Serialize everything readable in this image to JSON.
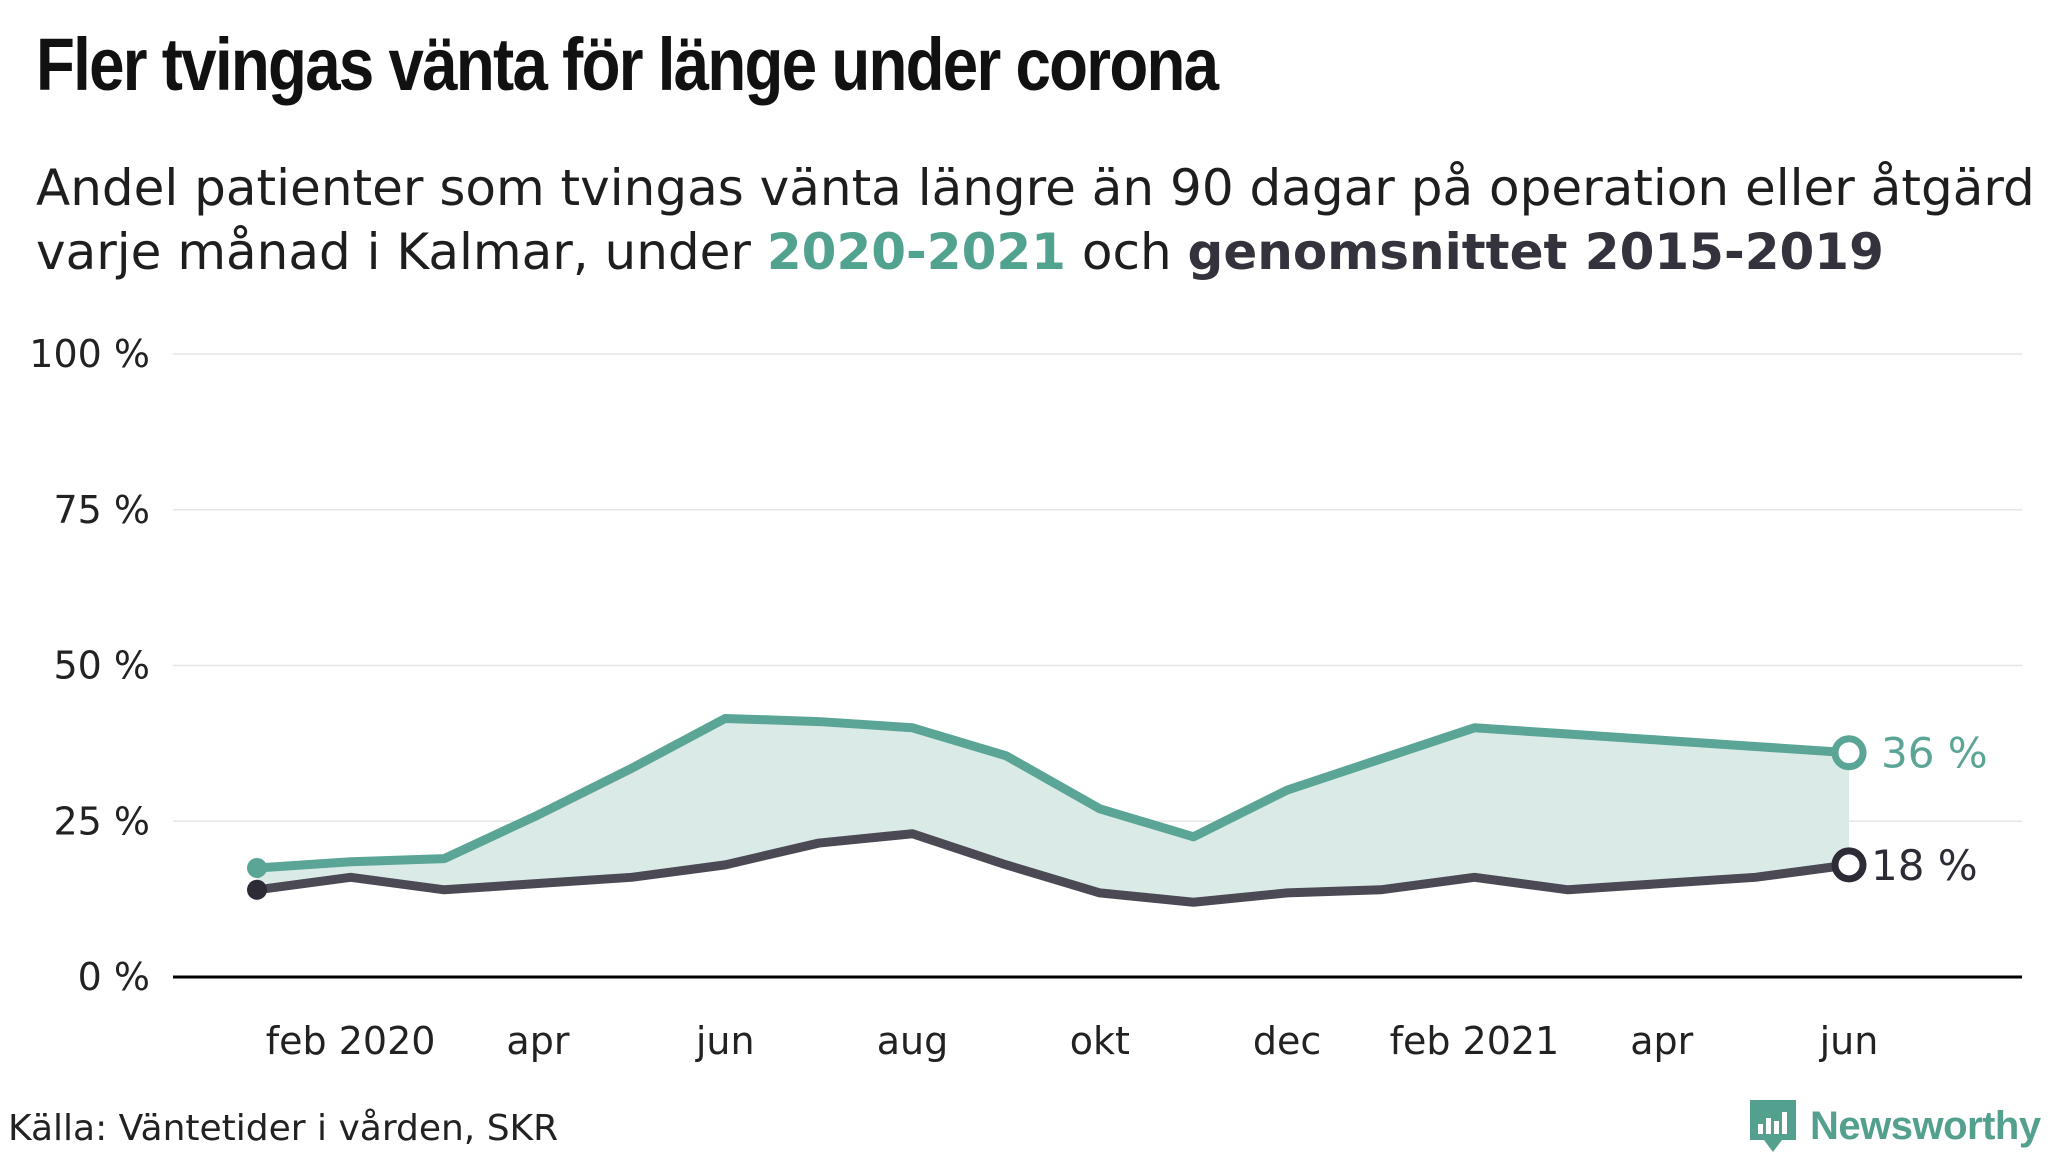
{
  "title": "Fler tvingas vänta för länge under corona",
  "subtitle": {
    "line1": "Andel patienter som tvingas vänta längre än 90 dagar på operation eller åtgärd",
    "line2_prefix": "varje månad i Kalmar, under ",
    "series1_label": "2020-2021",
    "connector": " och ",
    "series2_label": "genomsnittet 2015-2019"
  },
  "source": "Källa: Väntetider i vården, SKR",
  "brand": "Newsworthy",
  "colors": {
    "series1": "#5ba596",
    "series1_fill": "#d8e9e5",
    "series2": "#4a4954",
    "series2_marker": "#2c2b36",
    "grid": "#e6e6e6",
    "axis": "#000000",
    "brand": "#54a08f"
  },
  "chart_data": {
    "type": "line",
    "x": [
      "2020-01",
      "2020-02",
      "2020-03",
      "2020-04",
      "2020-05",
      "2020-06",
      "2020-07",
      "2020-08",
      "2020-09",
      "2020-10",
      "2020-11",
      "2020-12",
      "2021-01",
      "2021-02",
      "2021-03",
      "2021-04",
      "2021-05",
      "2021-06"
    ],
    "x_tick_labels": [
      {
        "index": 1,
        "label": "feb 2020"
      },
      {
        "index": 3,
        "label": "apr"
      },
      {
        "index": 5,
        "label": "jun"
      },
      {
        "index": 7,
        "label": "aug"
      },
      {
        "index": 9,
        "label": "okt"
      },
      {
        "index": 11,
        "label": "dec"
      },
      {
        "index": 13,
        "label": "feb 2021"
      },
      {
        "index": 15,
        "label": "apr"
      },
      {
        "index": 17,
        "label": "jun"
      }
    ],
    "y_ticks": [
      0,
      25,
      50,
      75,
      100
    ],
    "y_tick_labels": [
      "0 %",
      "25 %",
      "50 %",
      "75 %",
      "100 %"
    ],
    "ylim": [
      0,
      100
    ],
    "grid": true,
    "series": [
      {
        "name": "2020-2021",
        "values": [
          17.5,
          18.5,
          19,
          26,
          33.5,
          41.5,
          41,
          40,
          35.5,
          27,
          22.5,
          30,
          35,
          40,
          39,
          38,
          37,
          36
        ],
        "end_label": "36 %"
      },
      {
        "name": "genomsnittet 2015-2019",
        "values": [
          14,
          16,
          14,
          15,
          16,
          18,
          21.5,
          23,
          18,
          13.5,
          12,
          13.5,
          14,
          16,
          14,
          15,
          16,
          18
        ],
        "end_label": "18 %"
      }
    ]
  }
}
